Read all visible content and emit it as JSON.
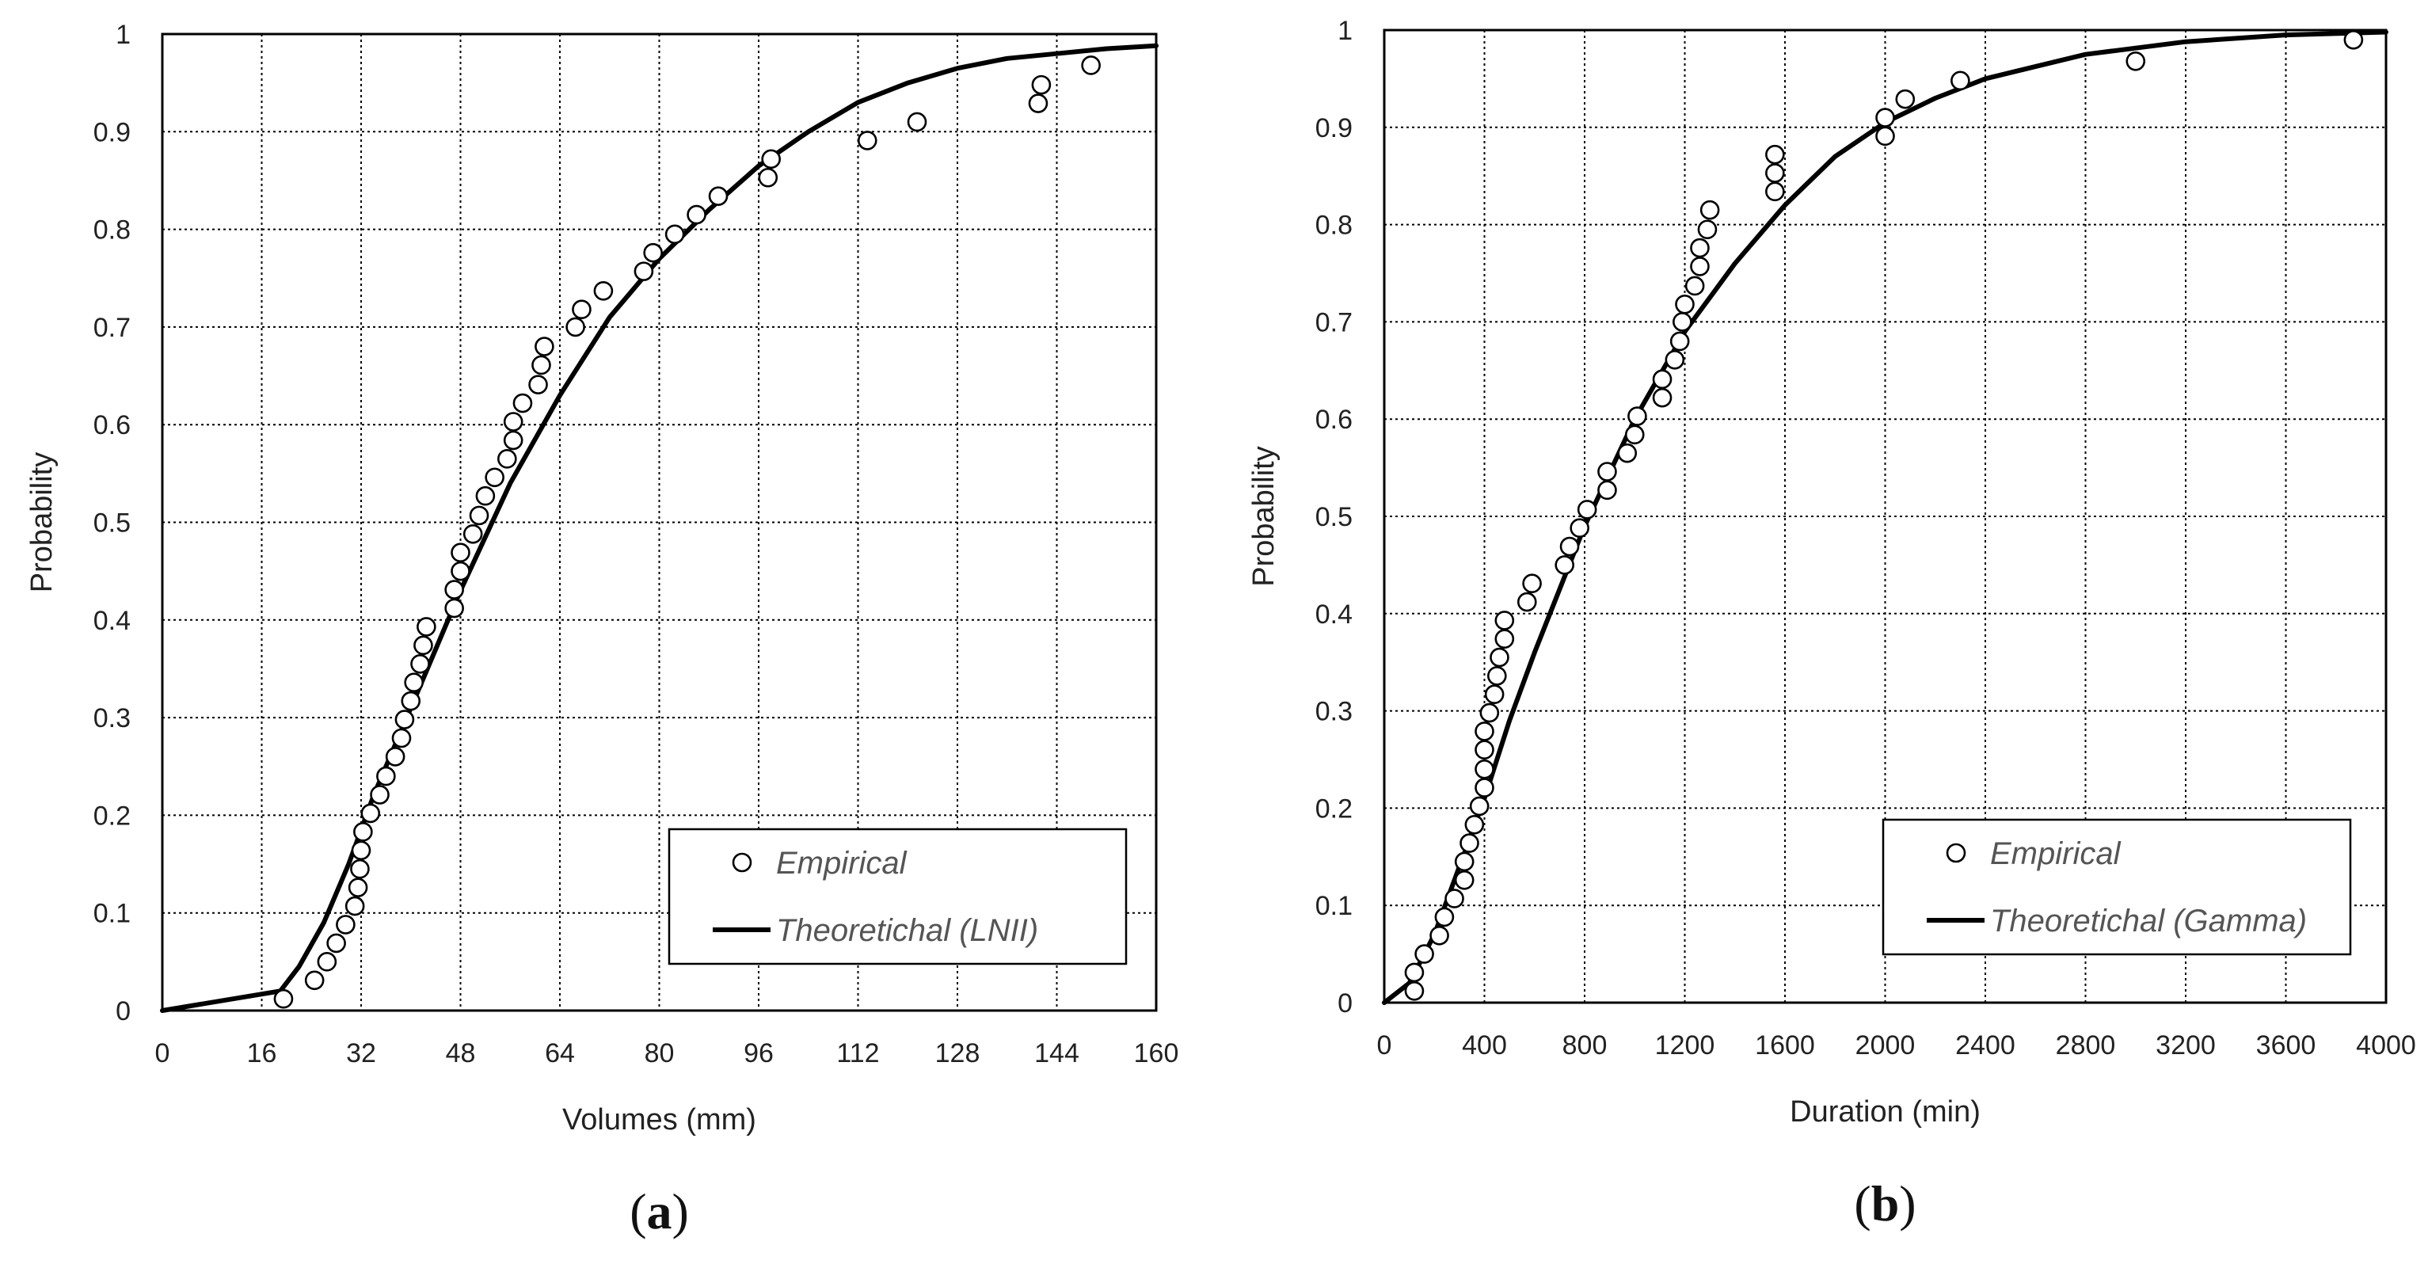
{
  "chart_data": [
    {
      "type": "scatter",
      "panel_label": "(a)",
      "panel_letter": "a",
      "xlabel": "Volumes (mm)",
      "ylabel": "Probability",
      "xlim": [
        0,
        160
      ],
      "ylim": [
        0,
        1
      ],
      "xticks": [
        "0",
        "16",
        "32",
        "48",
        "64",
        "80",
        "96",
        "112",
        "128",
        "144",
        "160"
      ],
      "yticks": [
        "0",
        "0.1",
        "0.2",
        "0.3",
        "0.4",
        "0.5",
        "0.6",
        "0.7",
        "0.8",
        "0.9",
        "1"
      ],
      "grid": true,
      "legend_position": "bottom-right",
      "series": [
        {
          "name": "Empirical",
          "kind": "points",
          "points": [
            [
              19.5,
              0.012
            ],
            [
              24.5,
              0.031
            ],
            [
              26.5,
              0.05
            ],
            [
              28,
              0.069
            ],
            [
              29.5,
              0.088
            ],
            [
              31,
              0.107
            ],
            [
              31.5,
              0.126
            ],
            [
              31.8,
              0.145
            ],
            [
              32,
              0.164
            ],
            [
              32.3,
              0.183
            ],
            [
              33.5,
              0.202
            ],
            [
              35,
              0.221
            ],
            [
              36,
              0.24
            ],
            [
              37.5,
              0.26
            ],
            [
              38.5,
              0.279
            ],
            [
              39,
              0.298
            ],
            [
              40,
              0.317
            ],
            [
              40.5,
              0.336
            ],
            [
              41.5,
              0.355
            ],
            [
              42,
              0.374
            ],
            [
              42.5,
              0.393
            ],
            [
              47,
              0.412
            ],
            [
              47,
              0.431
            ],
            [
              48,
              0.45
            ],
            [
              48,
              0.469
            ],
            [
              50,
              0.488
            ],
            [
              51,
              0.507
            ],
            [
              52,
              0.527
            ],
            [
              53.5,
              0.546
            ],
            [
              55.5,
              0.565
            ],
            [
              56.5,
              0.584
            ],
            [
              56.5,
              0.603
            ],
            [
              58,
              0.622
            ],
            [
              60.5,
              0.641
            ],
            [
              61,
              0.661
            ],
            [
              61.5,
              0.68
            ],
            [
              66.5,
              0.7
            ],
            [
              67.5,
              0.718
            ],
            [
              71,
              0.737
            ],
            [
              77.5,
              0.757
            ],
            [
              79,
              0.776
            ],
            [
              82.5,
              0.795
            ],
            [
              86,
              0.815
            ],
            [
              89.5,
              0.834
            ],
            [
              97.5,
              0.853
            ],
            [
              98,
              0.872
            ],
            [
              113.5,
              0.891
            ],
            [
              121.5,
              0.91
            ],
            [
              141,
              0.929
            ],
            [
              141.5,
              0.948
            ],
            [
              149.5,
              0.968
            ]
          ]
        },
        {
          "name": "Theoretichal (LNII)",
          "kind": "line",
          "points": [
            [
              0,
              0
            ],
            [
              19,
              0.02
            ],
            [
              22,
              0.045
            ],
            [
              26,
              0.09
            ],
            [
              30,
              0.15
            ],
            [
              34,
              0.22
            ],
            [
              40,
              0.31
            ],
            [
              48,
              0.43
            ],
            [
              56,
              0.54
            ],
            [
              64,
              0.63
            ],
            [
              72,
              0.71
            ],
            [
              80,
              0.77
            ],
            [
              88,
              0.82
            ],
            [
              96,
              0.865
            ],
            [
              104,
              0.9
            ],
            [
              112,
              0.93
            ],
            [
              120,
              0.95
            ],
            [
              128,
              0.965
            ],
            [
              136,
              0.975
            ],
            [
              144,
              0.98
            ],
            [
              152,
              0.985
            ],
            [
              160,
              0.988
            ]
          ]
        }
      ]
    },
    {
      "type": "scatter",
      "panel_label": "(b)",
      "panel_letter": "b",
      "xlabel": "Duration (min)",
      "ylabel": "Probability",
      "xlim": [
        0,
        4000
      ],
      "ylim": [
        0,
        1
      ],
      "xticks": [
        "0",
        "400",
        "800",
        "1200",
        "1600",
        "2000",
        "2400",
        "2800",
        "3200",
        "3600",
        "4000"
      ],
      "yticks": [
        "0",
        "0.1",
        "0.2",
        "0.3",
        "0.4",
        "0.5",
        "0.6",
        "0.7",
        "0.8",
        "0.9",
        "1"
      ],
      "grid": true,
      "legend_position": "bottom-right",
      "series": [
        {
          "name": "Empirical",
          "kind": "points",
          "points": [
            [
              120,
              0.012
            ],
            [
              120,
              0.031
            ],
            [
              160,
              0.05
            ],
            [
              220,
              0.069
            ],
            [
              240,
              0.088
            ],
            [
              280,
              0.107
            ],
            [
              320,
              0.126
            ],
            [
              320,
              0.145
            ],
            [
              340,
              0.164
            ],
            [
              360,
              0.183
            ],
            [
              380,
              0.202
            ],
            [
              400,
              0.221
            ],
            [
              400,
              0.24
            ],
            [
              400,
              0.26
            ],
            [
              400,
              0.279
            ],
            [
              420,
              0.298
            ],
            [
              440,
              0.317
            ],
            [
              450,
              0.336
            ],
            [
              460,
              0.355
            ],
            [
              480,
              0.374
            ],
            [
              480,
              0.393
            ],
            [
              570,
              0.412
            ],
            [
              590,
              0.431
            ],
            [
              720,
              0.45
            ],
            [
              740,
              0.469
            ],
            [
              780,
              0.488
            ],
            [
              810,
              0.507
            ],
            [
              890,
              0.527
            ],
            [
              890,
              0.546
            ],
            [
              970,
              0.565
            ],
            [
              1000,
              0.584
            ],
            [
              1010,
              0.603
            ],
            [
              1110,
              0.622
            ],
            [
              1110,
              0.641
            ],
            [
              1160,
              0.661
            ],
            [
              1180,
              0.68
            ],
            [
              1190,
              0.7
            ],
            [
              1200,
              0.718
            ],
            [
              1240,
              0.737
            ],
            [
              1260,
              0.757
            ],
            [
              1260,
              0.776
            ],
            [
              1290,
              0.795
            ],
            [
              1300,
              0.815
            ],
            [
              1560,
              0.834
            ],
            [
              1560,
              0.853
            ],
            [
              1560,
              0.872
            ],
            [
              2000,
              0.891
            ],
            [
              2000,
              0.91
            ],
            [
              2080,
              0.929
            ],
            [
              2300,
              0.948
            ],
            [
              3000,
              0.968
            ],
            [
              3870,
              0.99
            ]
          ]
        },
        {
          "name": "Theoretichal (Gamma)",
          "kind": "line",
          "points": [
            [
              0,
              0
            ],
            [
              100,
              0.02
            ],
            [
              200,
              0.07
            ],
            [
              300,
              0.14
            ],
            [
              400,
              0.21
            ],
            [
              500,
              0.29
            ],
            [
              600,
              0.36
            ],
            [
              800,
              0.49
            ],
            [
              1000,
              0.6
            ],
            [
              1200,
              0.69
            ],
            [
              1400,
              0.76
            ],
            [
              1600,
              0.82
            ],
            [
              1800,
              0.87
            ],
            [
              2000,
              0.905
            ],
            [
              2200,
              0.93
            ],
            [
              2400,
              0.95
            ],
            [
              2800,
              0.975
            ],
            [
              3200,
              0.988
            ],
            [
              3600,
              0.995
            ],
            [
              4000,
              0.998
            ]
          ]
        }
      ]
    }
  ]
}
